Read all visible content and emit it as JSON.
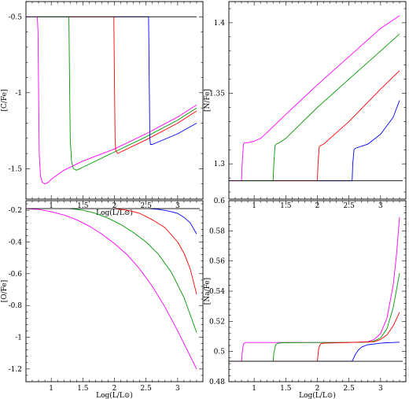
{
  "chart_data": [
    {
      "type": "line",
      "ylabel": "[C/Fe]",
      "xlabel": "Log(L/L⊙)",
      "xlim": [
        0.6,
        3.4
      ],
      "ylim": [
        -1.7,
        -0.4
      ],
      "xticks": [
        "1",
        "1.5",
        "2",
        "2.5",
        "3"
      ],
      "xtick_values": [
        1,
        1.5,
        2,
        2.5,
        3
      ],
      "yticks": [
        "-1.5",
        "-1",
        "-0.5"
      ],
      "ytick_values": [
        -1.5,
        -1,
        -0.5
      ],
      "series": [
        {
          "color": "#ff00ff",
          "x": [
            0.6,
            0.78,
            0.79,
            0.8,
            0.81,
            0.83,
            0.86,
            0.9,
            0.95,
            1.0,
            1.2,
            1.5,
            2.0,
            2.5,
            3.0,
            3.3
          ],
          "y": [
            -0.5,
            -0.5,
            -0.6,
            -1.0,
            -1.4,
            -1.55,
            -1.59,
            -1.6,
            -1.59,
            -1.57,
            -1.51,
            -1.45,
            -1.37,
            -1.27,
            -1.16,
            -1.08
          ]
        },
        {
          "color": "#009900",
          "x": [
            0.78,
            1.28,
            1.29,
            1.3,
            1.32,
            1.35,
            1.4,
            1.5,
            2.0,
            2.5,
            3.0,
            3.3
          ],
          "y": [
            -0.5,
            -0.5,
            -0.9,
            -1.3,
            -1.45,
            -1.5,
            -1.51,
            -1.49,
            -1.39,
            -1.29,
            -1.18,
            -1.1
          ]
        },
        {
          "color": "#ff0000",
          "x": [
            1.28,
            1.99,
            2.0,
            2.01,
            2.02,
            2.05,
            2.1,
            2.5,
            3.0,
            3.3
          ],
          "y": [
            -0.5,
            -0.5,
            -0.9,
            -1.3,
            -1.38,
            -1.4,
            -1.39,
            -1.31,
            -1.2,
            -1.12
          ]
        },
        {
          "color": "#0000ff",
          "x": [
            1.99,
            2.54,
            2.55,
            2.56,
            2.57,
            2.6,
            3.0,
            3.3
          ],
          "y": [
            -0.5,
            -0.5,
            -0.9,
            -1.3,
            -1.34,
            -1.34,
            -1.27,
            -1.2
          ]
        },
        {
          "color": "#000000",
          "x": [
            0.6,
            3.3
          ],
          "y": [
            -0.5,
            -0.5
          ]
        }
      ]
    },
    {
      "type": "line",
      "ylabel": "[N/Fe]",
      "xlabel": "",
      "xlim": [
        0.6,
        3.4
      ],
      "ylim": [
        1.275,
        1.415
      ],
      "xticks": [
        "1",
        "1.5",
        "2",
        "2.5",
        "3"
      ],
      "xtick_values": [
        1,
        1.5,
        2,
        2.5,
        3
      ],
      "yticks": [
        "1.3",
        "1.35",
        "1.4"
      ],
      "ytick_values": [
        1.3,
        1.35,
        1.4
      ],
      "series": [
        {
          "color": "#ff00ff",
          "x": [
            0.6,
            0.8,
            0.81,
            0.83,
            0.85,
            0.9,
            1.0,
            1.1,
            1.2,
            1.5,
            2.0,
            2.5,
            3.0,
            3.3
          ],
          "y": [
            1.288,
            1.288,
            1.3,
            1.314,
            1.315,
            1.315,
            1.316,
            1.318,
            1.322,
            1.335,
            1.356,
            1.376,
            1.396,
            1.405
          ]
        },
        {
          "color": "#009900",
          "x": [
            0.8,
            1.3,
            1.31,
            1.33,
            1.35,
            1.4,
            1.5,
            2.0,
            2.5,
            3.0,
            3.3
          ],
          "y": [
            1.288,
            1.288,
            1.3,
            1.313,
            1.314,
            1.315,
            1.318,
            1.34,
            1.36,
            1.38,
            1.392
          ]
        },
        {
          "color": "#ff0000",
          "x": [
            1.3,
            2.0,
            2.01,
            2.03,
            2.05,
            2.1,
            2.5,
            3.0,
            3.3
          ],
          "y": [
            1.288,
            1.288,
            1.3,
            1.312,
            1.313,
            1.314,
            1.33,
            1.353,
            1.366
          ]
        },
        {
          "color": "#0000ff",
          "x": [
            2.0,
            2.55,
            2.56,
            2.58,
            2.6,
            2.8,
            3.0,
            3.2,
            3.3
          ],
          "y": [
            1.288,
            1.288,
            1.3,
            1.31,
            1.311,
            1.314,
            1.321,
            1.333,
            1.345
          ]
        },
        {
          "color": "#000000",
          "x": [
            0.6,
            3.35
          ],
          "y": [
            1.288,
            1.288
          ]
        }
      ]
    },
    {
      "type": "line",
      "ylabel": "[O/Fe]",
      "xlabel": "Log(L/L⊙)",
      "xlim": [
        0.6,
        3.4
      ],
      "ylim": [
        -1.28,
        -0.14
      ],
      "xticks": [
        "1",
        "1.5",
        "2",
        "2.5",
        "3"
      ],
      "xtick_values": [
        1,
        1.5,
        2,
        2.5,
        3
      ],
      "yticks": [
        "-1.2",
        "-1",
        "-0.8",
        "-0.6",
        "-0.4",
        "-0.2"
      ],
      "ytick_values": [
        -1.2,
        -1,
        -0.8,
        -0.6,
        -0.4,
        -0.2
      ],
      "series": [
        {
          "color": "#ff00ff",
          "x": [
            0.6,
            0.8,
            1.0,
            1.2,
            1.4,
            1.6,
            1.8,
            2.0,
            2.2,
            2.4,
            2.6,
            2.8,
            3.0,
            3.2,
            3.3
          ],
          "y": [
            -0.19,
            -0.195,
            -0.21,
            -0.23,
            -0.26,
            -0.3,
            -0.35,
            -0.41,
            -0.48,
            -0.57,
            -0.68,
            -0.81,
            -0.96,
            -1.12,
            -1.2
          ]
        },
        {
          "color": "#009900",
          "x": [
            1.3,
            1.5,
            1.7,
            1.9,
            2.1,
            2.3,
            2.5,
            2.7,
            2.9,
            3.1,
            3.3
          ],
          "y": [
            -0.19,
            -0.2,
            -0.22,
            -0.25,
            -0.29,
            -0.34,
            -0.4,
            -0.48,
            -0.59,
            -0.75,
            -0.97
          ]
        },
        {
          "color": "#ff0000",
          "x": [
            2.0,
            2.2,
            2.4,
            2.6,
            2.8,
            3.0,
            3.1,
            3.2,
            3.3
          ],
          "y": [
            -0.19,
            -0.2,
            -0.22,
            -0.26,
            -0.31,
            -0.4,
            -0.47,
            -0.57,
            -0.73
          ]
        },
        {
          "color": "#0000ff",
          "x": [
            2.55,
            2.7,
            2.85,
            3.0,
            3.1,
            3.2,
            3.3
          ],
          "y": [
            -0.19,
            -0.195,
            -0.205,
            -0.22,
            -0.245,
            -0.28,
            -0.35
          ]
        },
        {
          "color": "#000000",
          "x": [
            0.6,
            3.35
          ],
          "y": [
            -0.19,
            -0.19
          ]
        }
      ]
    },
    {
      "type": "line",
      "ylabel": "[Na/Fe]",
      "xlabel": "Log(L/L⊙)",
      "xlim": [
        0.6,
        3.4
      ],
      "ylim": [
        0.48,
        0.6
      ],
      "xticks": [
        "1",
        "1.5",
        "2",
        "2.5",
        "3"
      ],
      "xtick_values": [
        1,
        1.5,
        2,
        2.5,
        3
      ],
      "yticks": [
        "0.48",
        "0.5",
        "0.52",
        "0.54",
        "0.56",
        "0.58",
        "0.6"
      ],
      "ytick_values": [
        0.48,
        0.5,
        0.52,
        0.54,
        0.56,
        0.58,
        0.6
      ],
      "series": [
        {
          "color": "#ff00ff",
          "x": [
            0.6,
            0.8,
            0.81,
            0.83,
            0.86,
            0.9,
            1.5,
            2.0,
            2.5,
            2.8,
            2.9,
            3.0,
            3.1,
            3.2,
            3.25,
            3.3
          ],
          "y": [
            0.4935,
            0.4935,
            0.499,
            0.505,
            0.506,
            0.506,
            0.506,
            0.506,
            0.506,
            0.5065,
            0.508,
            0.512,
            0.522,
            0.544,
            0.563,
            0.589
          ]
        },
        {
          "color": "#009900",
          "x": [
            0.8,
            1.3,
            1.31,
            1.34,
            1.38,
            1.45,
            2.0,
            2.5,
            2.8,
            2.9,
            3.0,
            3.1,
            3.2,
            3.3
          ],
          "y": [
            0.4935,
            0.4935,
            0.499,
            0.5045,
            0.5055,
            0.5058,
            0.506,
            0.506,
            0.5062,
            0.507,
            0.509,
            0.515,
            0.529,
            0.552
          ]
        },
        {
          "color": "#ff0000",
          "x": [
            1.3,
            2.0,
            2.02,
            2.05,
            2.1,
            2.5,
            2.9,
            3.0,
            3.1,
            3.2,
            3.3
          ],
          "y": [
            0.4935,
            0.4935,
            0.502,
            0.505,
            0.5055,
            0.506,
            0.5065,
            0.508,
            0.511,
            0.517,
            0.526
          ]
        },
        {
          "color": "#0000ff",
          "x": [
            2.0,
            2.55,
            2.6,
            2.65,
            2.7,
            2.8,
            2.9,
            3.0,
            3.1,
            3.2,
            3.3
          ],
          "y": [
            0.4935,
            0.4935,
            0.498,
            0.501,
            0.503,
            0.5045,
            0.505,
            0.5055,
            0.5058,
            0.506,
            0.5062
          ]
        },
        {
          "color": "#000000",
          "x": [
            0.6,
            3.35
          ],
          "y": [
            0.4935,
            0.4935
          ]
        }
      ]
    }
  ]
}
